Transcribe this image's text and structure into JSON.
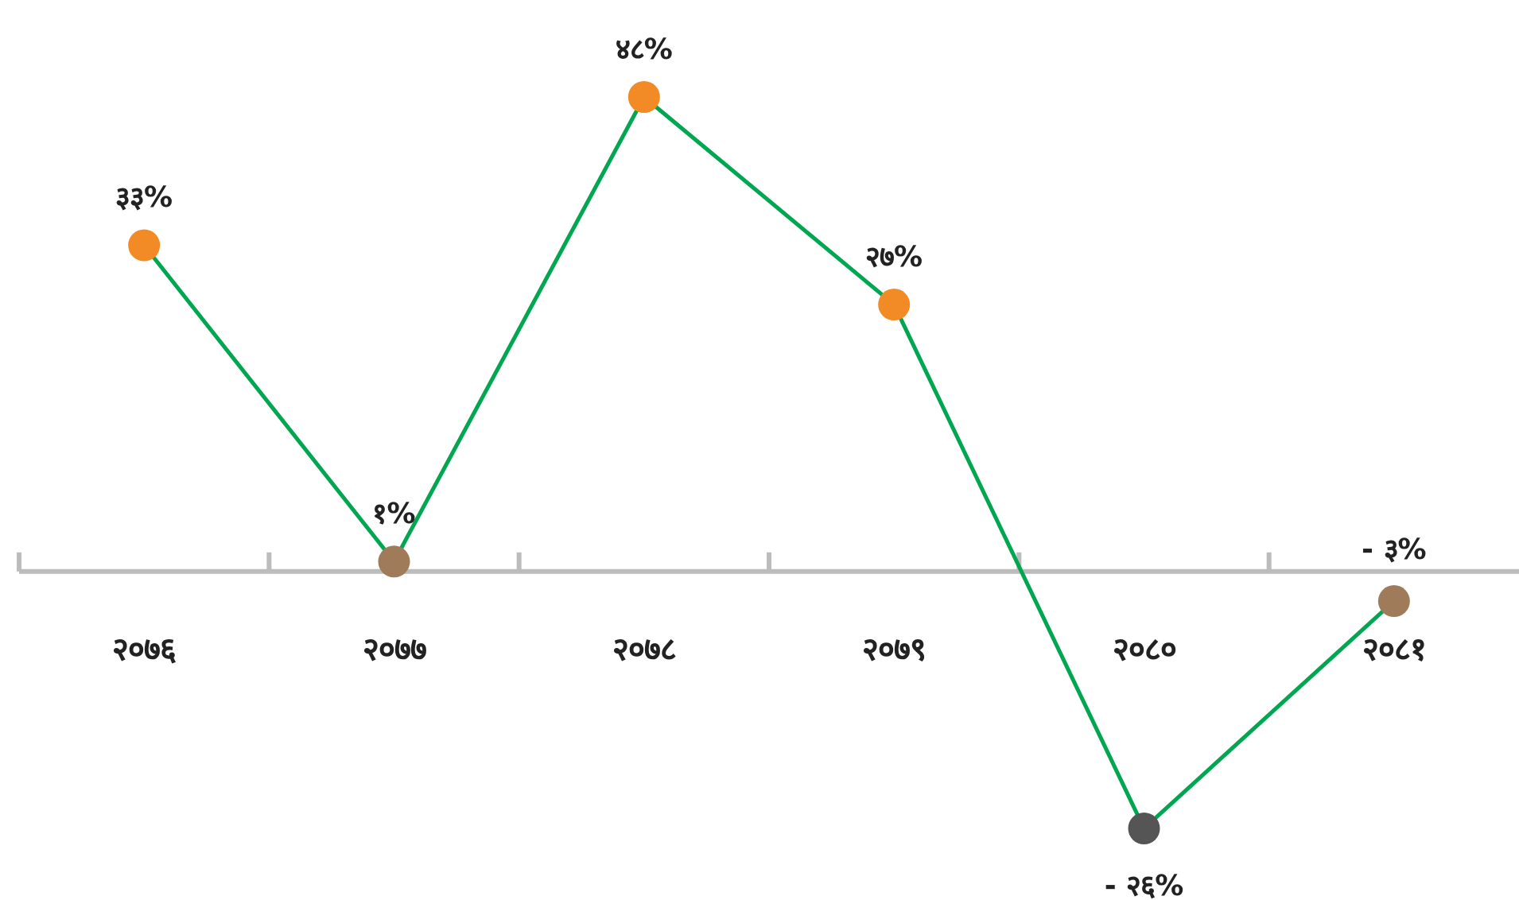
{
  "chart_data": {
    "type": "line",
    "categories": [
      "२०७६",
      "२०७७",
      "२०७८",
      "२०७९",
      "२०८०",
      "२०८१"
    ],
    "values": [
      33,
      1,
      48,
      27,
      -26,
      -3
    ],
    "color": "#00a650",
    "colors": [
      "#f28a25",
      "#a07b5a",
      "#f28a25",
      "#f28a25",
      "#555555",
      "#a07b5a"
    ],
    "value_labels": [
      "३३%",
      "१%",
      "४८%",
      "२७%",
      "- २६%",
      "- ३%"
    ],
    "marker": "circle"
  }
}
